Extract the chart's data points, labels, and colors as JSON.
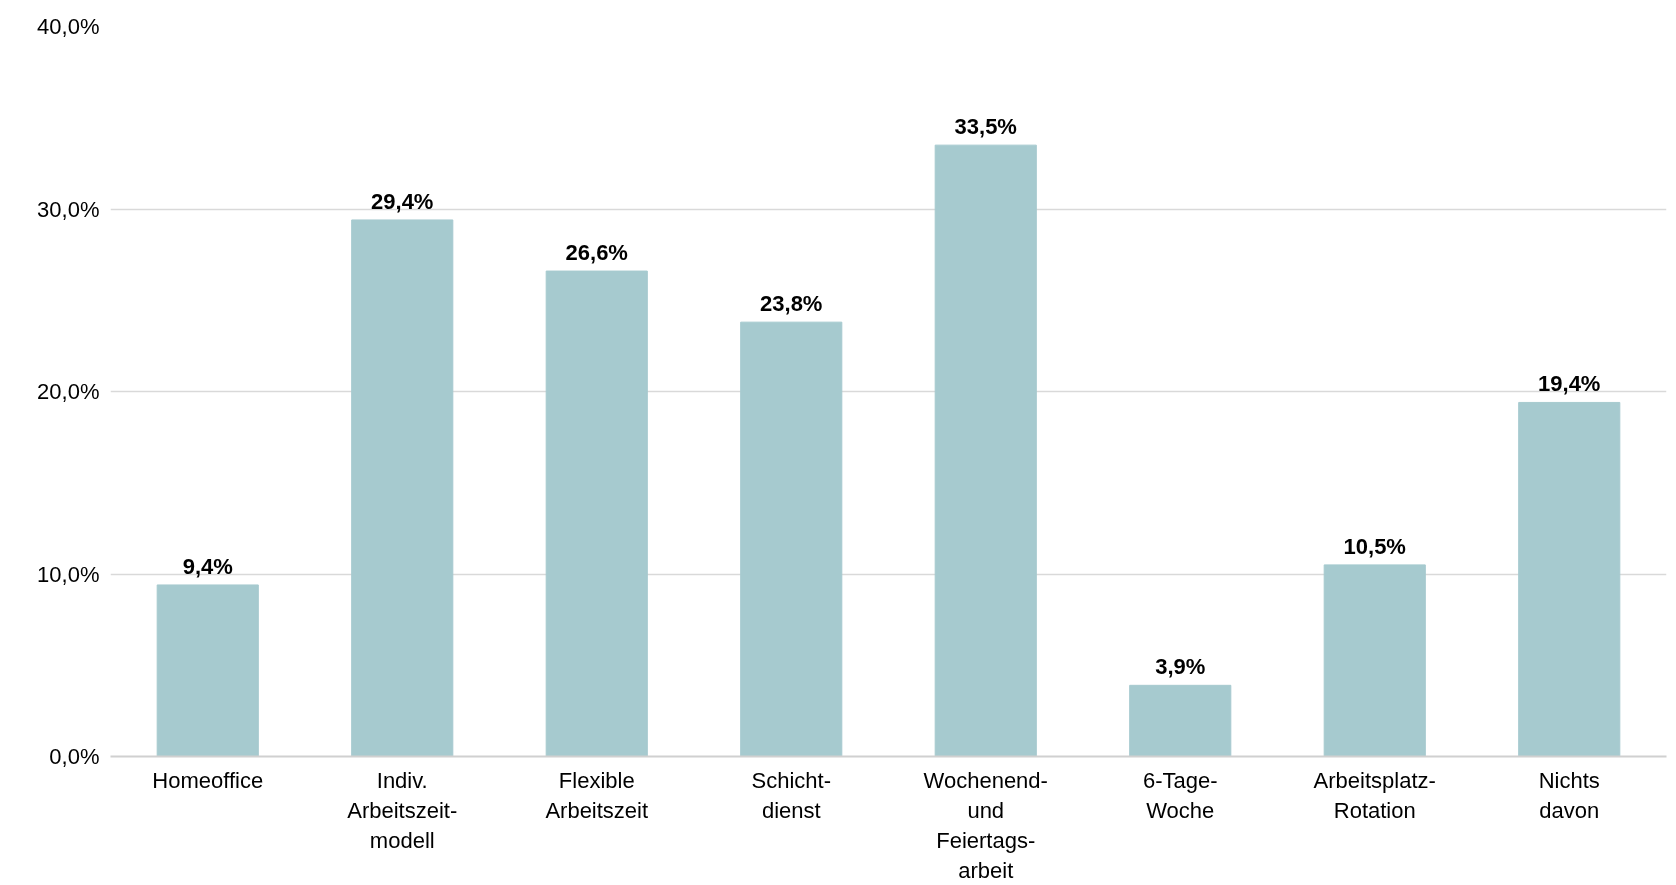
{
  "chart_data": {
    "type": "bar",
    "categories": [
      "Homeoffice",
      "Indiv.\nArbeitszeit-\nmodell",
      "Flexible\nArbeitszeit",
      "Schicht-\ndienst",
      "Wochenend-\nund\nFeiertags-\narbeit",
      "6-Tage-\nWoche",
      "Arbeitsplatz-\nRotation",
      "Nichts\ndavon"
    ],
    "values": [
      9.4,
      29.4,
      26.6,
      23.8,
      33.5,
      3.9,
      10.5,
      19.4
    ],
    "value_labels": [
      "9,4%",
      "29,4%",
      "26,6%",
      "23,8%",
      "33,5%",
      "3,9%",
      "10,5%",
      "19,4%"
    ],
    "color": "#a6cacf",
    "ylim": [
      0,
      40
    ],
    "yticks": [
      {
        "value": 0,
        "label": "0,0%"
      },
      {
        "value": 10,
        "label": "10,0%"
      },
      {
        "value": 20,
        "label": "20,0%"
      },
      {
        "value": 30,
        "label": "30,0%"
      },
      {
        "value": 40,
        "label": "40,0%"
      }
    ],
    "grid": "y"
  }
}
